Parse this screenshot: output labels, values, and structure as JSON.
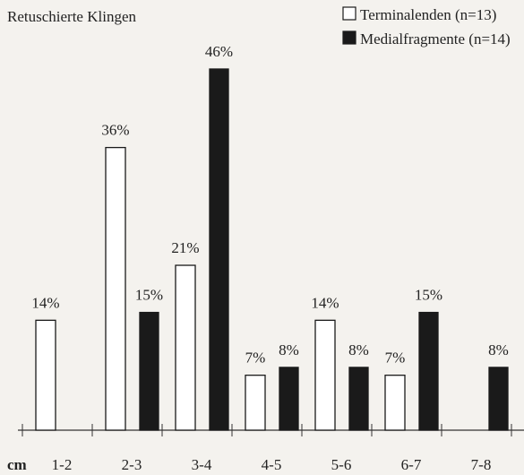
{
  "chart_data": {
    "type": "bar",
    "title": "Retuschierte Klingen",
    "x_label": "cm",
    "categories": [
      "1-2",
      "2-3",
      "3-4",
      "4-5",
      "5-6",
      "6-7",
      "7-8"
    ],
    "series": [
      {
        "name": "Terminalenden (n=13)",
        "color": "#ffffff",
        "stroke": "#1a1a1a",
        "values": [
          14,
          36,
          21,
          7,
          14,
          7,
          null
        ],
        "value_labels": [
          "14%",
          "36%",
          "21%",
          "7%",
          "14%",
          "7%",
          null
        ]
      },
      {
        "name": "Medialfragmente (n=14)",
        "color": "#1a1a1a",
        "stroke": "#1a1a1a",
        "values": [
          null,
          15,
          46,
          8,
          8,
          15,
          8
        ],
        "value_labels": [
          null,
          "15%",
          "46%",
          "8%",
          "8%",
          "15%",
          "8%"
        ]
      }
    ],
    "legend": "upper right"
  }
}
